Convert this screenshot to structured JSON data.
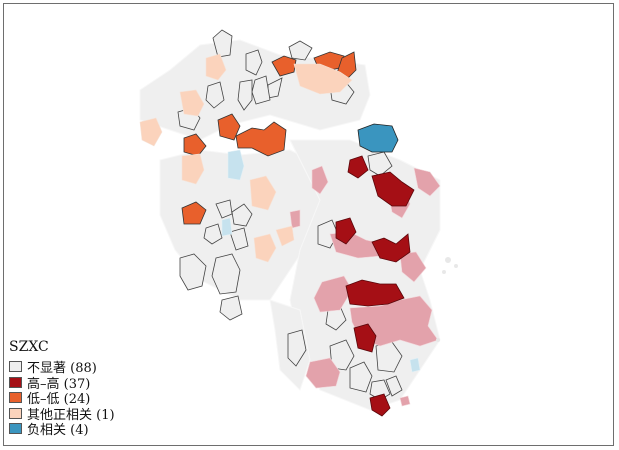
{
  "legend": {
    "title": "SZXC",
    "items": [
      {
        "label": "不显著  (88)",
        "color": "#eeeeee"
      },
      {
        "label": "高–高 (37)",
        "color": "#a50f15"
      },
      {
        "label": "低–低 (24)",
        "color": "#e8602c"
      },
      {
        "label": "其他正相关 (1)",
        "color": "#fbd3bc"
      },
      {
        "label": "负相关 (4)",
        "color": "#3a95bf"
      }
    ]
  },
  "colors": {
    "not_significant": "#eeeeee",
    "high_high": "#a50f15",
    "high_high_light": "#e0a1aa",
    "low_low": "#e8602c",
    "other_positive": "#fbd3bc",
    "negative": "#3a95bf",
    "negative_light": "#c6e2ee"
  }
}
